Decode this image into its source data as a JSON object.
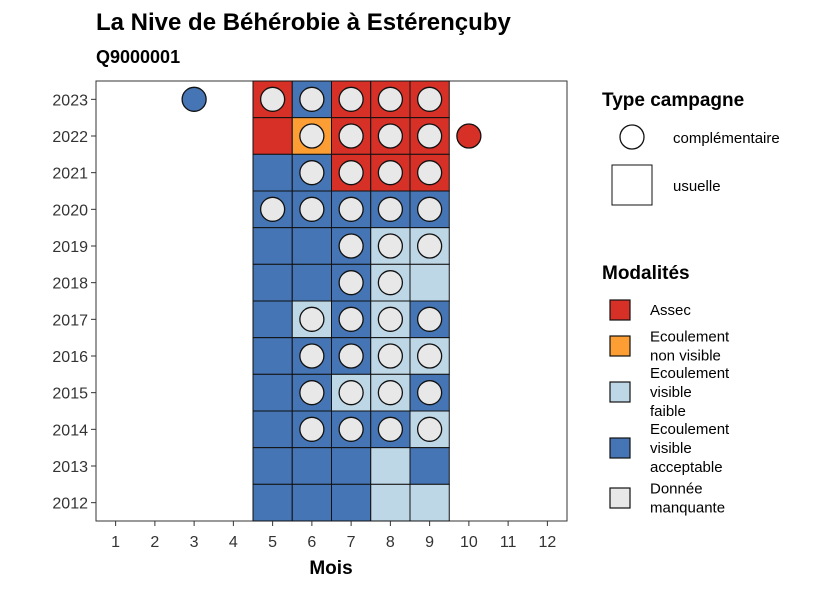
{
  "chart_data": {
    "type": "heatmap",
    "title": "La Nive de Béhérobie à Estérençuby",
    "subtitle": "Q9000001",
    "xlabel": "Mois",
    "ylabel": "",
    "x_ticks": [
      "1",
      "2",
      "3",
      "4",
      "5",
      "6",
      "7",
      "8",
      "9",
      "10",
      "11",
      "12"
    ],
    "y_ticks": [
      "2023",
      "2022",
      "2021",
      "2020",
      "2019",
      "2018",
      "2017",
      "2016",
      "2015",
      "2014",
      "2013",
      "2012"
    ],
    "xlim": [
      0.5,
      12.5
    ],
    "ylim": [
      2011.5,
      2023.5
    ],
    "colors": {
      "assec": "#d73027",
      "nonvisible": "#fd9e34",
      "faible": "#bdd7e7",
      "acceptable": "#4575b4",
      "manquante": "#e8e8e8"
    },
    "usuelle": [
      {
        "year": 2023,
        "month": 5,
        "mod": "assec"
      },
      {
        "year": 2023,
        "month": 6,
        "mod": "acceptable"
      },
      {
        "year": 2023,
        "month": 7,
        "mod": "assec"
      },
      {
        "year": 2023,
        "month": 8,
        "mod": "assec"
      },
      {
        "year": 2023,
        "month": 9,
        "mod": "assec"
      },
      {
        "year": 2022,
        "month": 5,
        "mod": "assec"
      },
      {
        "year": 2022,
        "month": 6,
        "mod": "nonvisible"
      },
      {
        "year": 2022,
        "month": 7,
        "mod": "assec"
      },
      {
        "year": 2022,
        "month": 8,
        "mod": "assec"
      },
      {
        "year": 2022,
        "month": 9,
        "mod": "assec"
      },
      {
        "year": 2021,
        "month": 5,
        "mod": "acceptable"
      },
      {
        "year": 2021,
        "month": 6,
        "mod": "acceptable"
      },
      {
        "year": 2021,
        "month": 7,
        "mod": "assec"
      },
      {
        "year": 2021,
        "month": 8,
        "mod": "assec"
      },
      {
        "year": 2021,
        "month": 9,
        "mod": "assec"
      },
      {
        "year": 2020,
        "month": 5,
        "mod": "acceptable"
      },
      {
        "year": 2020,
        "month": 6,
        "mod": "acceptable"
      },
      {
        "year": 2020,
        "month": 7,
        "mod": "acceptable"
      },
      {
        "year": 2020,
        "month": 8,
        "mod": "acceptable"
      },
      {
        "year": 2020,
        "month": 9,
        "mod": "acceptable"
      },
      {
        "year": 2019,
        "month": 5,
        "mod": "acceptable"
      },
      {
        "year": 2019,
        "month": 6,
        "mod": "acceptable"
      },
      {
        "year": 2019,
        "month": 7,
        "mod": "acceptable"
      },
      {
        "year": 2019,
        "month": 8,
        "mod": "faible"
      },
      {
        "year": 2019,
        "month": 9,
        "mod": "faible"
      },
      {
        "year": 2018,
        "month": 5,
        "mod": "acceptable"
      },
      {
        "year": 2018,
        "month": 6,
        "mod": "acceptable"
      },
      {
        "year": 2018,
        "month": 7,
        "mod": "acceptable"
      },
      {
        "year": 2018,
        "month": 8,
        "mod": "faible"
      },
      {
        "year": 2018,
        "month": 9,
        "mod": "faible"
      },
      {
        "year": 2017,
        "month": 5,
        "mod": "acceptable"
      },
      {
        "year": 2017,
        "month": 6,
        "mod": "faible"
      },
      {
        "year": 2017,
        "month": 7,
        "mod": "acceptable"
      },
      {
        "year": 2017,
        "month": 8,
        "mod": "faible"
      },
      {
        "year": 2017,
        "month": 9,
        "mod": "acceptable"
      },
      {
        "year": 2016,
        "month": 5,
        "mod": "acceptable"
      },
      {
        "year": 2016,
        "month": 6,
        "mod": "acceptable"
      },
      {
        "year": 2016,
        "month": 7,
        "mod": "acceptable"
      },
      {
        "year": 2016,
        "month": 8,
        "mod": "faible"
      },
      {
        "year": 2016,
        "month": 9,
        "mod": "faible"
      },
      {
        "year": 2015,
        "month": 5,
        "mod": "acceptable"
      },
      {
        "year": 2015,
        "month": 6,
        "mod": "acceptable"
      },
      {
        "year": 2015,
        "month": 7,
        "mod": "faible"
      },
      {
        "year": 2015,
        "month": 8,
        "mod": "faible"
      },
      {
        "year": 2015,
        "month": 9,
        "mod": "acceptable"
      },
      {
        "year": 2014,
        "month": 5,
        "mod": "acceptable"
      },
      {
        "year": 2014,
        "month": 6,
        "mod": "acceptable"
      },
      {
        "year": 2014,
        "month": 7,
        "mod": "acceptable"
      },
      {
        "year": 2014,
        "month": 8,
        "mod": "acceptable"
      },
      {
        "year": 2014,
        "month": 9,
        "mod": "faible"
      },
      {
        "year": 2013,
        "month": 5,
        "mod": "acceptable"
      },
      {
        "year": 2013,
        "month": 6,
        "mod": "acceptable"
      },
      {
        "year": 2013,
        "month": 7,
        "mod": "acceptable"
      },
      {
        "year": 2013,
        "month": 8,
        "mod": "faible"
      },
      {
        "year": 2013,
        "month": 9,
        "mod": "acceptable"
      },
      {
        "year": 2012,
        "month": 5,
        "mod": "acceptable"
      },
      {
        "year": 2012,
        "month": 6,
        "mod": "acceptable"
      },
      {
        "year": 2012,
        "month": 7,
        "mod": "acceptable"
      },
      {
        "year": 2012,
        "month": 8,
        "mod": "faible"
      },
      {
        "year": 2012,
        "month": 9,
        "mod": "faible"
      }
    ],
    "complementaire": [
      {
        "year": 2023,
        "month": 3,
        "mod": "acceptable"
      },
      {
        "year": 2023,
        "month": 5,
        "mod": "manquante"
      },
      {
        "year": 2023,
        "month": 6,
        "mod": "manquante"
      },
      {
        "year": 2023,
        "month": 7,
        "mod": "manquante"
      },
      {
        "year": 2023,
        "month": 8,
        "mod": "manquante"
      },
      {
        "year": 2023,
        "month": 9,
        "mod": "manquante"
      },
      {
        "year": 2022,
        "month": 6,
        "mod": "manquante"
      },
      {
        "year": 2022,
        "month": 7,
        "mod": "manquante"
      },
      {
        "year": 2022,
        "month": 8,
        "mod": "manquante"
      },
      {
        "year": 2022,
        "month": 9,
        "mod": "manquante"
      },
      {
        "year": 2022,
        "month": 10,
        "mod": "assec"
      },
      {
        "year": 2021,
        "month": 6,
        "mod": "manquante"
      },
      {
        "year": 2021,
        "month": 7,
        "mod": "manquante"
      },
      {
        "year": 2021,
        "month": 8,
        "mod": "manquante"
      },
      {
        "year": 2021,
        "month": 9,
        "mod": "manquante"
      },
      {
        "year": 2020,
        "month": 5,
        "mod": "manquante"
      },
      {
        "year": 2020,
        "month": 6,
        "mod": "manquante"
      },
      {
        "year": 2020,
        "month": 7,
        "mod": "manquante"
      },
      {
        "year": 2020,
        "month": 8,
        "mod": "manquante"
      },
      {
        "year": 2020,
        "month": 9,
        "mod": "manquante"
      },
      {
        "year": 2019,
        "month": 7,
        "mod": "manquante"
      },
      {
        "year": 2019,
        "month": 8,
        "mod": "manquante"
      },
      {
        "year": 2019,
        "month": 9,
        "mod": "manquante"
      },
      {
        "year": 2018,
        "month": 7,
        "mod": "manquante"
      },
      {
        "year": 2018,
        "month": 8,
        "mod": "manquante"
      },
      {
        "year": 2017,
        "month": 6,
        "mod": "manquante"
      },
      {
        "year": 2017,
        "month": 7,
        "mod": "manquante"
      },
      {
        "year": 2017,
        "month": 8,
        "mod": "manquante"
      },
      {
        "year": 2017,
        "month": 9,
        "mod": "manquante"
      },
      {
        "year": 2016,
        "month": 6,
        "mod": "manquante"
      },
      {
        "year": 2016,
        "month": 7,
        "mod": "manquante"
      },
      {
        "year": 2016,
        "month": 8,
        "mod": "manquante"
      },
      {
        "year": 2016,
        "month": 9,
        "mod": "manquante"
      },
      {
        "year": 2015,
        "month": 6,
        "mod": "manquante"
      },
      {
        "year": 2015,
        "month": 7,
        "mod": "manquante"
      },
      {
        "year": 2015,
        "month": 8,
        "mod": "manquante"
      },
      {
        "year": 2015,
        "month": 9,
        "mod": "manquante"
      },
      {
        "year": 2014,
        "month": 6,
        "mod": "manquante"
      },
      {
        "year": 2014,
        "month": 7,
        "mod": "manquante"
      },
      {
        "year": 2014,
        "month": 8,
        "mod": "manquante"
      },
      {
        "year": 2014,
        "month": 9,
        "mod": "manquante"
      }
    ],
    "legend_type": {
      "title": "Type campagne",
      "items": [
        {
          "key": "circle",
          "label": "complémentaire"
        },
        {
          "key": "square",
          "label": "usuelle"
        }
      ]
    },
    "legend_mod": {
      "title": "Modalités",
      "items": [
        {
          "key": "assec",
          "lines": [
            "Assec"
          ]
        },
        {
          "key": "nonvisible",
          "lines": [
            "Ecoulement",
            "non visible"
          ]
        },
        {
          "key": "faible",
          "lines": [
            "Ecoulement",
            "visible",
            "faible"
          ]
        },
        {
          "key": "acceptable",
          "lines": [
            "Ecoulement",
            "visible",
            "acceptable"
          ]
        },
        {
          "key": "manquante",
          "lines": [
            "Donnée",
            "manquante"
          ]
        }
      ]
    }
  }
}
